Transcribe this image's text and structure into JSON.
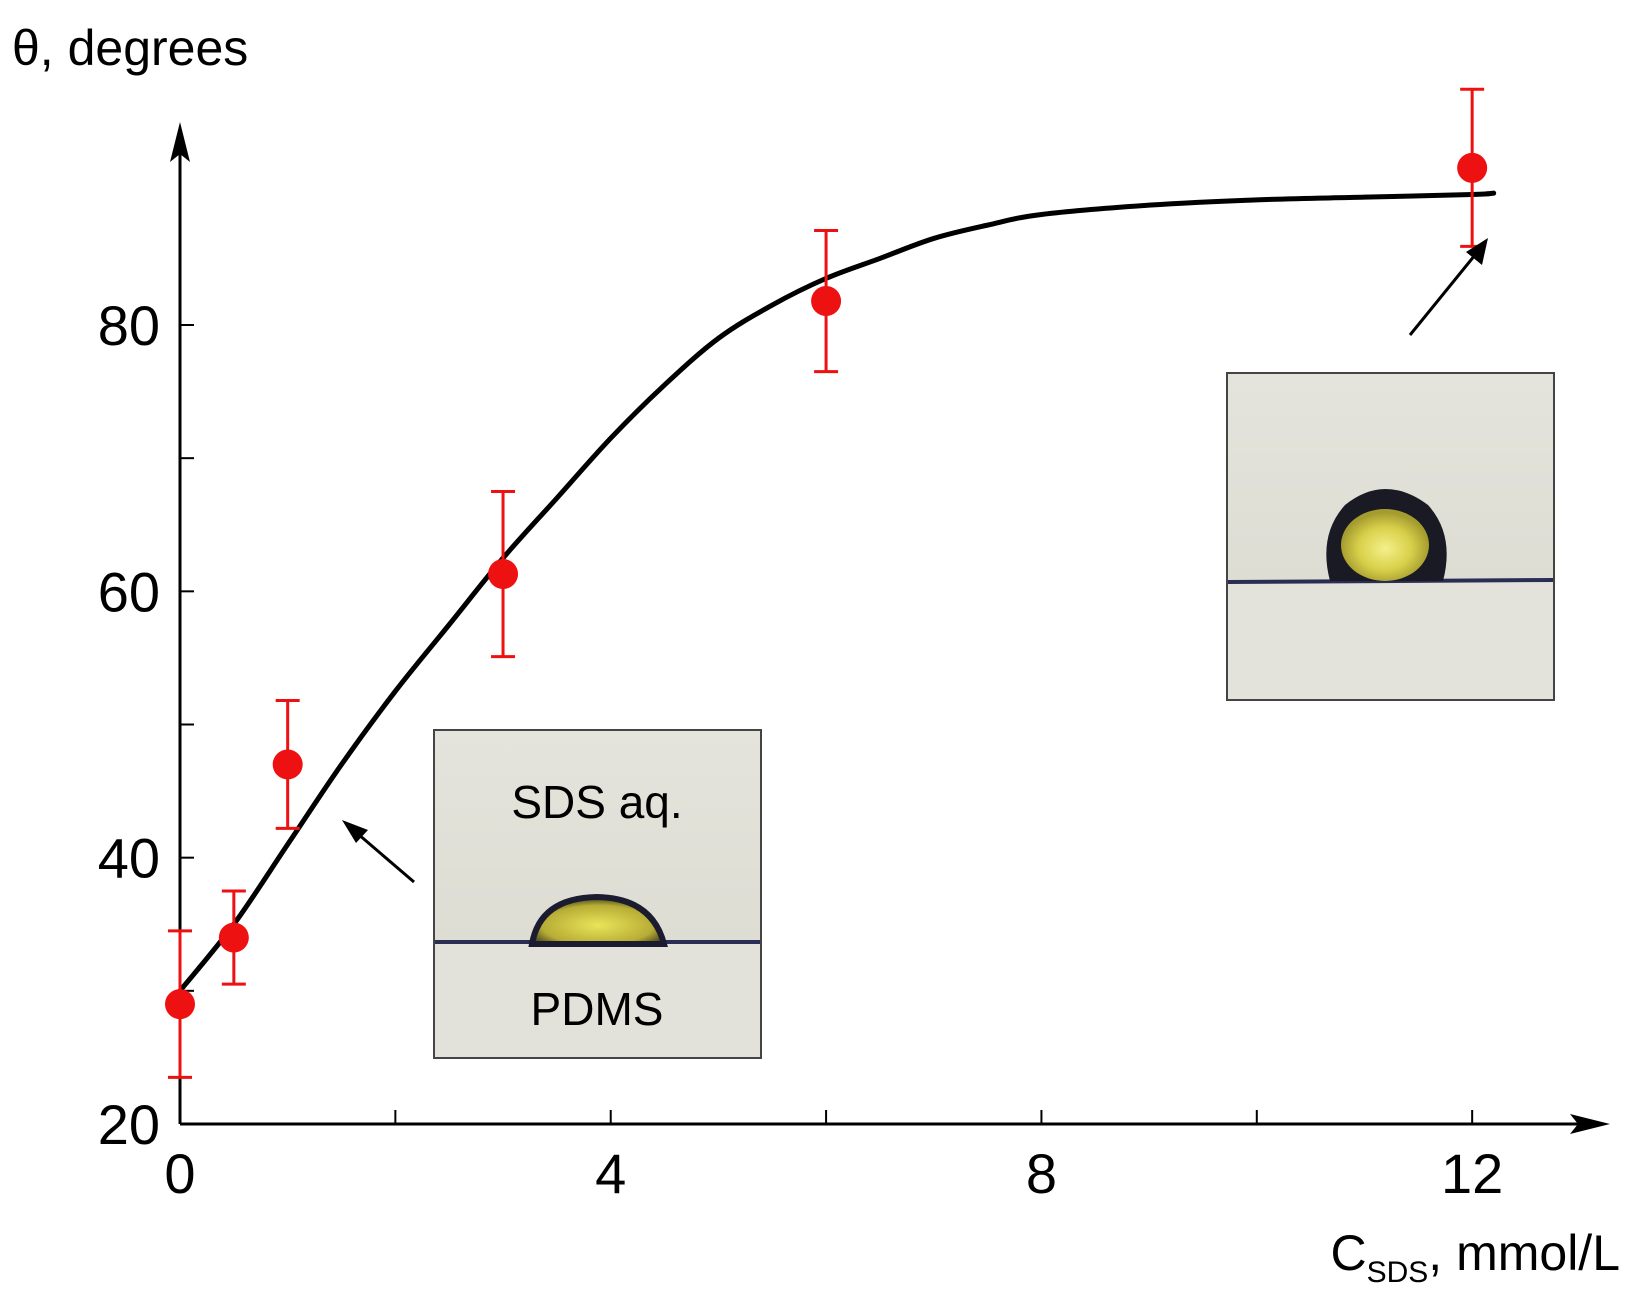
{
  "chart_data": {
    "type": "scatter",
    "title": "",
    "ylabel": "θ, degrees",
    "xlabel_main": "C",
    "xlabel_sub": "SDS",
    "xlabel_rest": ", mmol/L",
    "xlim": [
      0,
      12.6
    ],
    "ylim": [
      20,
      96
    ],
    "x_ticks": [
      0,
      4,
      8,
      12
    ],
    "x_minor_ticks": [
      2,
      6,
      10
    ],
    "y_ticks": [
      20,
      40,
      60,
      80
    ],
    "y_minor_ticks": [
      30,
      50,
      70
    ],
    "points": [
      {
        "x": 0,
        "y": 29,
        "err": 5.5
      },
      {
        "x": 0.5,
        "y": 34,
        "err": 3.5
      },
      {
        "x": 1,
        "y": 47,
        "err": 4.8
      },
      {
        "x": 3,
        "y": 61.3,
        "err": 6.2
      },
      {
        "x": 6,
        "y": 81.8,
        "err": 5.3
      },
      {
        "x": 12,
        "y": 91.8,
        "err": 5.9
      }
    ],
    "fit_curve": [
      [
        0,
        30
      ],
      [
        0.5,
        35
      ],
      [
        1,
        41
      ],
      [
        1.5,
        47
      ],
      [
        2,
        52.5
      ],
      [
        2.5,
        57.5
      ],
      [
        3,
        62.5
      ],
      [
        3.5,
        67
      ],
      [
        4,
        71.5
      ],
      [
        4.5,
        75.5
      ],
      [
        5,
        79
      ],
      [
        5.5,
        81.5
      ],
      [
        6,
        83.5
      ],
      [
        6.5,
        85
      ],
      [
        7,
        86.5
      ],
      [
        7.5,
        87.5
      ],
      [
        8,
        88.3
      ],
      [
        9,
        89
      ],
      [
        10,
        89.4
      ],
      [
        11,
        89.6
      ],
      [
        12,
        89.8
      ],
      [
        12.2,
        89.9
      ]
    ],
    "point_color": "#ee1111",
    "curve_color": "#000000",
    "insets": [
      {
        "label_top": "SDS aq.",
        "label_bottom": "PDMS",
        "arrow_target": [
          1.4,
          43
        ]
      },
      {
        "label_top": "",
        "label_bottom": "",
        "arrow_target": [
          11.8,
          88.5
        ]
      }
    ]
  }
}
